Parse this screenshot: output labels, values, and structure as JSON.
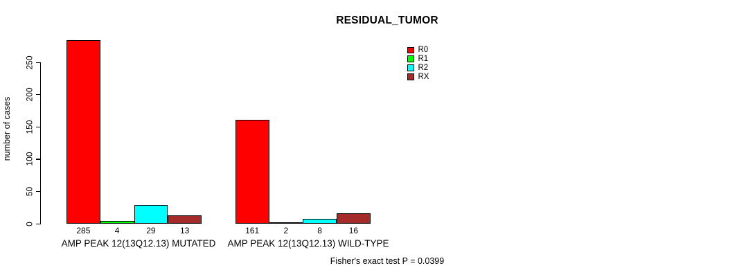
{
  "chart_data": {
    "type": "bar",
    "title": "RESIDUAL_TUMOR",
    "xlabel": "",
    "ylabel": "number of cases",
    "ylim": [
      0,
      290
    ],
    "yticks": [
      0,
      50,
      100,
      150,
      200,
      250
    ],
    "grid": false,
    "legend_position": "top-right-inside",
    "legend": [
      "R0",
      "R1",
      "R2",
      "RX"
    ],
    "colors": {
      "R0": "#FF0000",
      "R1": "#00FF00",
      "R2": "#00FFFF",
      "RX": "#A52A2A"
    },
    "categories": [
      "AMP PEAK 12(13Q12.13) MUTATED",
      "AMP PEAK 12(13Q12.13) WILD-TYPE"
    ],
    "series": [
      {
        "name": "R0",
        "color": "#FF0000",
        "values": [
          285,
          161
        ]
      },
      {
        "name": "R1",
        "color": "#00FF00",
        "values": [
          4,
          2
        ]
      },
      {
        "name": "R2",
        "color": "#00FFFF",
        "values": [
          29,
          8
        ]
      },
      {
        "name": "RX",
        "color": "#A52A2A",
        "values": [
          13,
          16
        ]
      }
    ],
    "value_labels": [
      [
        "285",
        "4",
        "29",
        "13"
      ],
      [
        "161",
        "2",
        "8",
        "16"
      ]
    ],
    "annotation": "Fisher's exact test P = 0.0399"
  }
}
